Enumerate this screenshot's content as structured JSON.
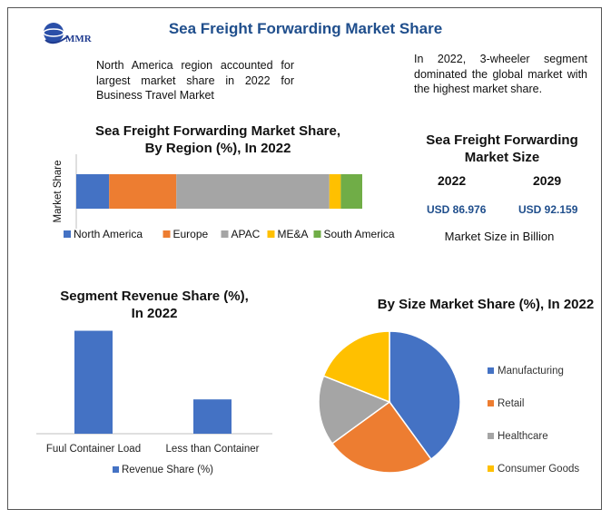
{
  "header": {
    "logo_text": "MMR",
    "title": "Sea Freight Forwarding Market Share"
  },
  "notes": {
    "left": "North America region accounted for largest market share in 2022 for Business Travel Market",
    "right": "In 2022, 3-wheeler segment dominated the global market with the highest market share."
  },
  "market_size": {
    "title": "Sea Freight Forwarding Market Size",
    "year_a": "2022",
    "year_b": "2029",
    "value_a": "USD 86.976",
    "value_b": "USD 92.159",
    "unit": "Market Size in Billion"
  },
  "chart_data": [
    {
      "type": "bar",
      "orientation": "horizontal-stacked",
      "title": "Sea Freight Forwarding Market Share, By Region (%), In 2022",
      "ylabel": "Market Share",
      "categories": [
        ""
      ],
      "series": [
        {
          "name": "North America",
          "values": [
            11.5
          ],
          "color": "#4472c4"
        },
        {
          "name": "Europe",
          "values": [
            23.5
          ],
          "color": "#ed7d31"
        },
        {
          "name": "APAC",
          "values": [
            53.5
          ],
          "color": "#a5a5a5"
        },
        {
          "name": "ME&A",
          "values": [
            4
          ],
          "color": "#ffc000"
        },
        {
          "name": "South America",
          "values": [
            7.5
          ],
          "color": "#70ad47"
        }
      ],
      "xlim": [
        0,
        100
      ],
      "legend": "bottom",
      "grid": false
    },
    {
      "type": "bar",
      "title": "Segment Revenue Share (%), In 2022",
      "categories": [
        "Fuul Container Load",
        "Less than Container"
      ],
      "series": [
        {
          "name": "Revenue Share (%)",
          "values": [
            75,
            25
          ],
          "color": "#4472c4"
        }
      ],
      "ylim": [
        0,
        78
      ],
      "legend": "bottom",
      "grid": false
    },
    {
      "type": "pie",
      "title": "By Size Market Share (%), In 2022",
      "labels": [
        "Manufacturing",
        "Retail",
        "Healthcare",
        "Consumer Goods"
      ],
      "values": [
        40,
        25,
        16,
        19
      ],
      "colors": [
        "#4472c4",
        "#ed7d31",
        "#a5a5a5",
        "#ffc000"
      ],
      "legend": "right"
    }
  ]
}
